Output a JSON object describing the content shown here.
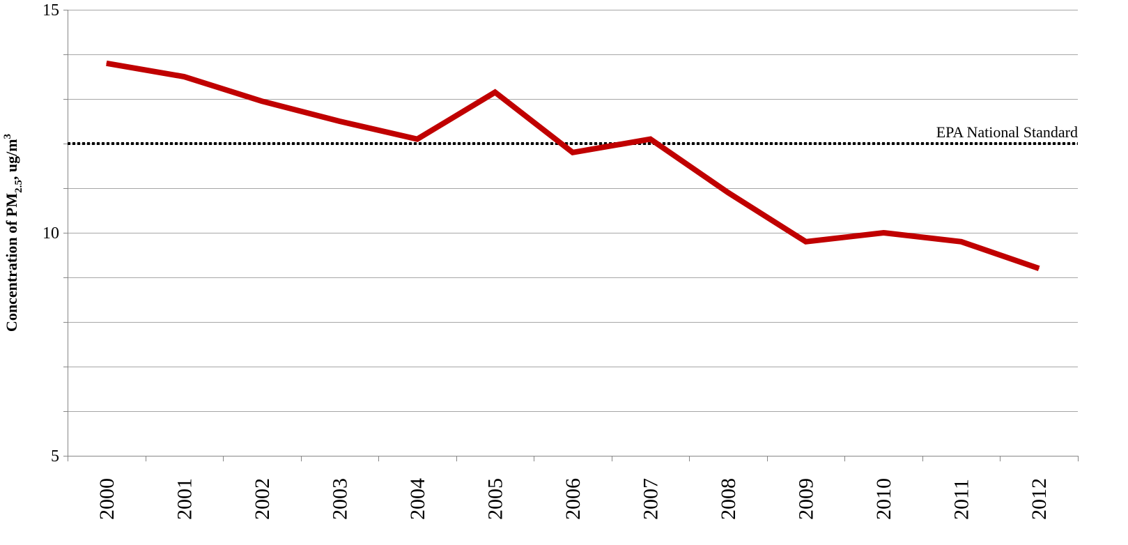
{
  "chart_data": {
    "type": "line",
    "title": "",
    "xlabel": "",
    "ylabel": {
      "prefix": "Concentration of PM",
      "subscript": "2.5",
      "middle": ", ug/m",
      "superscript": "3"
    },
    "ylim": [
      5,
      15
    ],
    "yticks": [
      "5",
      "10",
      "15"
    ],
    "grid": true,
    "categories": [
      "2000",
      "2001",
      "2002",
      "2003",
      "2004",
      "2005",
      "2006",
      "2007",
      "2008",
      "2009",
      "2010",
      "2011",
      "2012"
    ],
    "series": [
      {
        "values": [
          13.8,
          13.5,
          12.95,
          12.5,
          12.1,
          13.15,
          11.8,
          12.1,
          10.9,
          9.8,
          10.0,
          9.8,
          9.2
        ],
        "color": "#C00000"
      }
    ],
    "reference_line": {
      "label": "EPA National Standard",
      "value": 12.0,
      "color": "#000000",
      "style": "dotted"
    }
  }
}
